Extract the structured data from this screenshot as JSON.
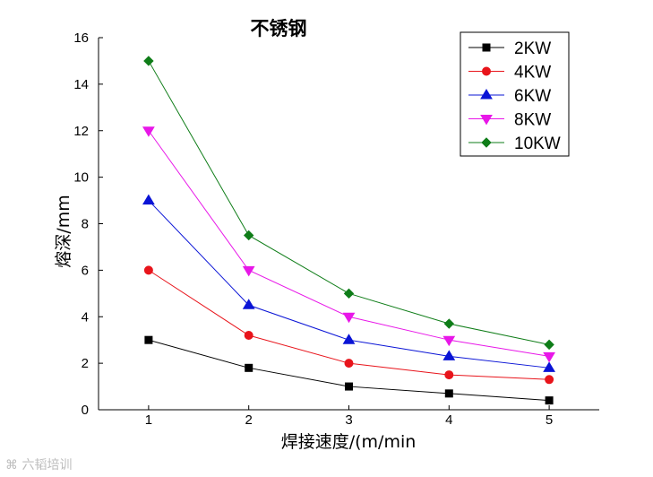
{
  "chart_data": {
    "type": "line",
    "title": "不锈钢",
    "xlabel": "焊接速度/(m/min",
    "ylabel": "熔深/mm",
    "x": [
      1,
      2,
      3,
      4,
      5
    ],
    "xlim": [
      0.5,
      5.5
    ],
    "ylim": [
      0,
      16
    ],
    "x_ticks": [
      1,
      2,
      3,
      4,
      5
    ],
    "y_ticks": [
      0,
      2,
      4,
      6,
      8,
      10,
      12,
      14,
      16
    ],
    "grid": false,
    "legend_position": "top-right",
    "series": [
      {
        "name": "2KW",
        "color": "#000000",
        "marker": "square",
        "values": [
          3.0,
          1.8,
          1.0,
          0.7,
          0.4
        ]
      },
      {
        "name": "4KW",
        "color": "#e8141b",
        "marker": "circle",
        "values": [
          6.0,
          3.2,
          2.0,
          1.5,
          1.3
        ]
      },
      {
        "name": "6KW",
        "color": "#0a14d6",
        "marker": "triangle-up",
        "values": [
          9.0,
          4.5,
          3.0,
          2.3,
          1.8
        ]
      },
      {
        "name": "8KW",
        "color": "#e817e8",
        "marker": "triangle-down",
        "values": [
          12.0,
          6.0,
          4.0,
          3.0,
          2.3
        ]
      },
      {
        "name": "10KW",
        "color": "#0f7d18",
        "marker": "diamond",
        "values": [
          15.0,
          7.5,
          5.0,
          3.7,
          2.8
        ]
      }
    ]
  },
  "watermark": {
    "text": "六韬培训"
  }
}
